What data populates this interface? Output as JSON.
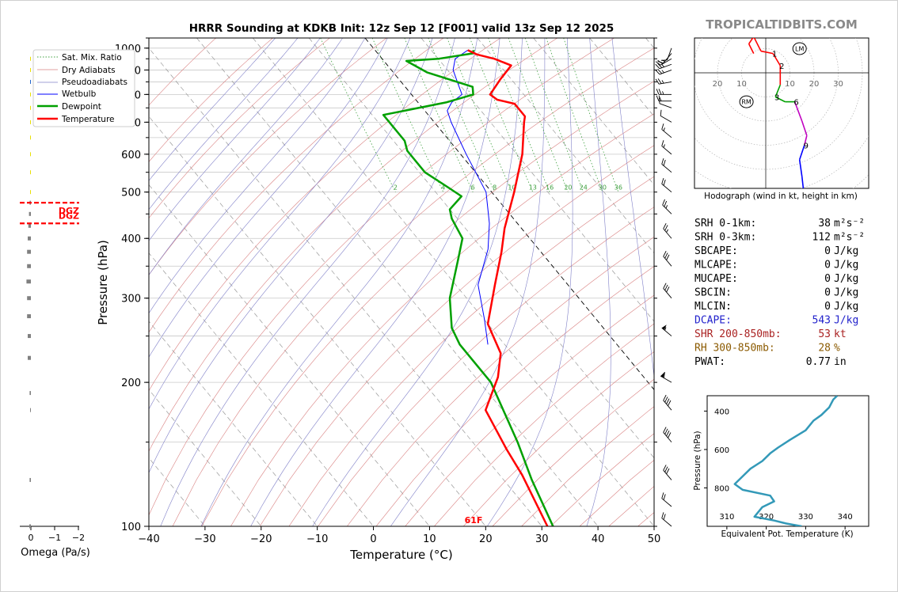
{
  "title": "HRRR Sounding at KDKB Init: 12z Sep 12 [F001] valid 13z Sep 12 2025",
  "watermark": "TROPICALTIDBITS.COM",
  "colors": {
    "temperature": "#ff0000",
    "dewpoint": "#00a000",
    "wetbulb": "#0000ff",
    "dry_adiabat": "#d98080",
    "moist_adiabat": "#8080c8",
    "mixing_ratio": "#40a040",
    "isotherm": "#888888",
    "theta_e": "#3399b8",
    "dgz": "#ff0000",
    "dcape": "#2222cc",
    "shr": "#aa2222",
    "rh": "#8b5a00"
  },
  "chart_data": [
    {
      "type": "skewt",
      "title": "HRRR Sounding at KDKB Init: 12z Sep 12 [F001] valid 13z Sep 12 2025",
      "xlabel": "Temperature (°C)",
      "ylabel": "Pressure (hPa)",
      "xlim": [
        -40,
        50
      ],
      "ylim": [
        1050,
        100
      ],
      "y_scale": "log",
      "skew_deg_per_decade": 70,
      "x_ticks": [
        -40,
        -30,
        -20,
        -10,
        0,
        10,
        20,
        30,
        40,
        50
      ],
      "x_tick_labels": [
        "−40",
        "−30",
        "−20",
        "−10",
        "0",
        "10",
        "20",
        "30",
        "40",
        "50"
      ],
      "y_ticks": [
        1000,
        900,
        800,
        700,
        600,
        500,
        400,
        300,
        200,
        100
      ],
      "mixing_ratio_labels": [
        "2",
        "4",
        "6",
        "8",
        "10",
        "13",
        "16",
        "20",
        "24",
        "30",
        "36"
      ],
      "surface_label": "61F",
      "legend": [
        "Sat. Mix. Ratio",
        "Dry Adiabats",
        "Pseudoadiabats",
        "Wetbulb",
        "Dewpoint",
        "Temperature"
      ],
      "legend_position": "top-left",
      "series": [
        {
          "name": "Temperature",
          "points": [
            [
              16.5,
              990
            ],
            [
              17.5,
              970
            ],
            [
              20,
              950
            ],
            [
              22,
              920
            ],
            [
              18,
              860
            ],
            [
              14,
              800
            ],
            [
              14.5,
              780
            ],
            [
              17,
              765
            ],
            [
              17,
              720
            ],
            [
              16,
              700
            ],
            [
              11,
              600
            ],
            [
              4,
              500
            ],
            [
              -3,
              420
            ],
            [
              -7,
              375
            ],
            [
              -13,
              320
            ],
            [
              -20,
              265
            ],
            [
              -22,
              230
            ],
            [
              -26,
              205
            ],
            [
              -33,
              175
            ],
            [
              -35,
              145
            ],
            [
              -36,
              128
            ],
            [
              -39,
              100
            ]
          ]
        },
        {
          "name": "Dewpoint",
          "points": [
            [
              17.5,
              990
            ],
            [
              17,
              975
            ],
            [
              10,
              950
            ],
            [
              4,
              940
            ],
            [
              6,
              890
            ],
            [
              12,
              830
            ],
            [
              11,
              800
            ],
            [
              5,
              770
            ],
            [
              -8,
              725
            ],
            [
              -8,
              690
            ],
            [
              -8,
              640
            ],
            [
              -9,
              610
            ],
            [
              -9,
              550
            ],
            [
              -7,
              510
            ],
            [
              -6,
              490
            ],
            [
              -10,
              460
            ],
            [
              -11,
              440
            ],
            [
              -12,
              400
            ],
            [
              -16,
              360
            ],
            [
              -23,
              300
            ],
            [
              -27,
              260
            ],
            [
              -28,
              240
            ],
            [
              -28,
              200
            ],
            [
              -32,
              150
            ],
            [
              -35,
              125
            ],
            [
              -38,
              100
            ]
          ]
        },
        {
          "name": "Wetbulb",
          "points": [
            [
              16.5,
              990
            ],
            [
              13,
              950
            ],
            [
              11,
              900
            ],
            [
              10,
              850
            ],
            [
              9,
              800
            ],
            [
              6,
              770
            ],
            [
              4,
              740
            ],
            [
              3,
              700
            ],
            [
              1,
              600
            ],
            [
              -1,
              500
            ],
            [
              -5,
              430
            ],
            [
              -9,
              380
            ],
            [
              -16,
              320
            ],
            [
              -20,
              270
            ],
            [
              -23,
              240
            ]
          ]
        }
      ],
      "dgz_levels_hpa": [
        430,
        475
      ],
      "dgz_label": "DGZ",
      "wind_barbs": [
        {
          "p": 1000,
          "dir": 200,
          "spd": 10
        },
        {
          "p": 975,
          "dir": 220,
          "spd": 15
        },
        {
          "p": 950,
          "dir": 240,
          "spd": 20
        },
        {
          "p": 925,
          "dir": 250,
          "spd": 25
        },
        {
          "p": 900,
          "dir": 250,
          "spd": 25
        },
        {
          "p": 850,
          "dir": 260,
          "spd": 25
        },
        {
          "p": 800,
          "dir": 270,
          "spd": 25
        },
        {
          "p": 775,
          "dir": 270,
          "spd": 20
        },
        {
          "p": 750,
          "dir": 290,
          "spd": 10
        },
        {
          "p": 700,
          "dir": 300,
          "spd": 10
        },
        {
          "p": 650,
          "dir": 310,
          "spd": 15
        },
        {
          "p": 600,
          "dir": 310,
          "spd": 15
        },
        {
          "p": 550,
          "dir": 310,
          "spd": 20
        },
        {
          "p": 500,
          "dir": 310,
          "spd": 20
        },
        {
          "p": 450,
          "dir": 315,
          "spd": 25
        },
        {
          "p": 400,
          "dir": 320,
          "spd": 25
        },
        {
          "p": 350,
          "dir": 320,
          "spd": 30
        },
        {
          "p": 300,
          "dir": 320,
          "spd": 30
        },
        {
          "p": 250,
          "dir": 310,
          "spd": 55
        },
        {
          "p": 200,
          "dir": 300,
          "spd": 60
        },
        {
          "p": 175,
          "dir": 320,
          "spd": 40
        },
        {
          "p": 150,
          "dir": 320,
          "spd": 40
        },
        {
          "p": 125,
          "dir": 320,
          "spd": 30
        },
        {
          "p": 110,
          "dir": 310,
          "spd": 20
        },
        {
          "p": 100,
          "dir": 310,
          "spd": 20
        }
      ]
    },
    {
      "type": "hodograph",
      "caption": "Hodograph (wind in kt, height in km)",
      "ring_labels": [
        "20",
        "10",
        "10",
        "20",
        "30"
      ],
      "height_labels": [
        "1",
        "2",
        "3",
        "6",
        "9"
      ],
      "storm_markers": [
        "LM",
        "RM"
      ],
      "points": [
        {
          "u": -5,
          "v": 8,
          "c": "#ff0000"
        },
        {
          "u": -7,
          "v": 12,
          "c": "#ff0000"
        },
        {
          "u": -5,
          "v": 15,
          "c": "#ff0000"
        },
        {
          "u": -2,
          "v": 9,
          "c": "#ff0000"
        },
        {
          "u": 3,
          "v": 8,
          "c": "#ff0000"
        },
        {
          "u": 6,
          "v": 3,
          "c": "#ff0000"
        },
        {
          "u": 6,
          "v": -5,
          "c": "#ff0000"
        },
        {
          "u": 4,
          "v": -10,
          "c": "#00a000"
        },
        {
          "u": 8,
          "v": -12,
          "c": "#00a000"
        },
        {
          "u": 12,
          "v": -12,
          "c": "#00a000"
        },
        {
          "u": 15,
          "v": -20,
          "c": "#c000c0"
        },
        {
          "u": 17,
          "v": -26,
          "c": "#c000c0"
        },
        {
          "u": 16,
          "v": -30,
          "c": "#c000c0"
        },
        {
          "u": 14,
          "v": -36,
          "c": "#0000ff"
        },
        {
          "u": 15,
          "v": -43,
          "c": "#0000ff"
        },
        {
          "u": 16,
          "v": -52,
          "c": "#0000ff"
        },
        {
          "u": 17,
          "v": -56,
          "c": "#0000ff"
        }
      ],
      "storm_motion": {
        "LM": [
          14,
          10
        ],
        "RM": [
          -8,
          -12
        ]
      }
    },
    {
      "type": "line",
      "xlabel": "Equivalent Pot. Temperature (K)",
      "ylabel": "Pressure (hPa)",
      "xlim": [
        305,
        346
      ],
      "ylim": [
        1000,
        320
      ],
      "x_ticks": [
        310,
        320,
        330,
        340
      ],
      "y_ticks": [
        400,
        600,
        800
      ],
      "series": [
        {
          "name": "Theta-E",
          "points": [
            [
              329,
              1000
            ],
            [
              325,
              985
            ],
            [
              322,
              970
            ],
            [
              317,
              950
            ],
            [
              319,
              900
            ],
            [
              322,
              870
            ],
            [
              321,
              840
            ],
            [
              314,
              810
            ],
            [
              312,
              780
            ],
            [
              314,
              740
            ],
            [
              316,
              700
            ],
            [
              319,
              660
            ],
            [
              321,
              620
            ],
            [
              323,
              590
            ],
            [
              326,
              550
            ],
            [
              330,
              500
            ],
            [
              332,
              450
            ],
            [
              334,
              420
            ],
            [
              336,
              380
            ],
            [
              337,
              340
            ],
            [
              338,
              320
            ]
          ]
        }
      ]
    },
    {
      "type": "line",
      "xlabel": "Omega (Pa/s)",
      "x_ticks": [
        0,
        -1,
        -2
      ],
      "x_tick_labels": [
        "0",
        "−1",
        "−2"
      ],
      "xlim": [
        0.3,
        -2.3
      ],
      "series": [
        {
          "name": "Omega",
          "bars": [
            {
              "p": 100,
              "w": 0.05,
              "c": "#808080"
            },
            {
              "p": 125,
              "w": 0.04,
              "c": "#808080"
            },
            {
              "p": 175,
              "w": 0.02,
              "c": "#808080"
            },
            {
              "p": 190,
              "w": 0.04,
              "c": "#808080"
            },
            {
              "p": 225,
              "w": 0.1,
              "c": "#808080"
            },
            {
              "p": 250,
              "w": 0.1,
              "c": "#808080"
            },
            {
              "p": 275,
              "w": 0.12,
              "c": "#808080"
            },
            {
              "p": 300,
              "w": 0.12,
              "c": "#808080"
            },
            {
              "p": 325,
              "w": 0.14,
              "c": "#808080"
            },
            {
              "p": 350,
              "w": 0.12,
              "c": "#808080"
            },
            {
              "p": 375,
              "w": 0.12,
              "c": "#808080"
            },
            {
              "p": 400,
              "w": 0.1,
              "c": "#808080"
            },
            {
              "p": 425,
              "w": 0.08,
              "c": "#808080"
            },
            {
              "p": 450,
              "w": 0.06,
              "c": "#808080"
            },
            {
              "p": 475,
              "w": 0.04,
              "c": "#808080"
            },
            {
              "p": 500,
              "w": 0.02,
              "c": "#e8e000"
            },
            {
              "p": 550,
              "w": 0.02,
              "c": "#e8e000"
            },
            {
              "p": 600,
              "w": 0.02,
              "c": "#e8e000"
            },
            {
              "p": 650,
              "w": 0.02,
              "c": "#e8e000"
            },
            {
              "p": 700,
              "w": 0.02,
              "c": "#e8e000"
            },
            {
              "p": 750,
              "w": 0.01,
              "c": "#e8e000"
            },
            {
              "p": 800,
              "w": 0.01,
              "c": "#e8e000"
            },
            {
              "p": 850,
              "w": 0.01,
              "c": "#2266cc"
            },
            {
              "p": 900,
              "w": 0.01,
              "c": "#e8e000"
            },
            {
              "p": 950,
              "w": 0.01,
              "c": "#e8e000"
            }
          ]
        }
      ]
    }
  ],
  "indices": [
    {
      "label": "SRH 0-1km:",
      "value": "38",
      "unit": "m²s⁻²",
      "color": "#000000"
    },
    {
      "label": "SRH 0-3km:",
      "value": "112",
      "unit": "m²s⁻²",
      "color": "#000000"
    },
    {
      "label": "SBCAPE:",
      "value": "0",
      "unit": "J/kg",
      "color": "#000000"
    },
    {
      "label": "MLCAPE:",
      "value": "0",
      "unit": "J/kg",
      "color": "#000000"
    },
    {
      "label": "MUCAPE:",
      "value": "0",
      "unit": "J/kg",
      "color": "#000000"
    },
    {
      "label": "SBCIN:",
      "value": "0",
      "unit": "J/kg",
      "color": "#000000"
    },
    {
      "label": "MLCIN:",
      "value": "0",
      "unit": "J/kg",
      "color": "#000000"
    },
    {
      "label": "DCAPE:",
      "value": "543",
      "unit": "J/kg",
      "color": "#2222cc"
    },
    {
      "label": "SHR 200-850mb:",
      "value": "53",
      "unit": "kt",
      "color": "#aa2222"
    },
    {
      "label": "RH 300-850mb:",
      "value": "28",
      "unit": "%",
      "color": "#8b5a00"
    },
    {
      "label": "PWAT:",
      "value": "0.77",
      "unit": "in",
      "color": "#000000"
    }
  ]
}
